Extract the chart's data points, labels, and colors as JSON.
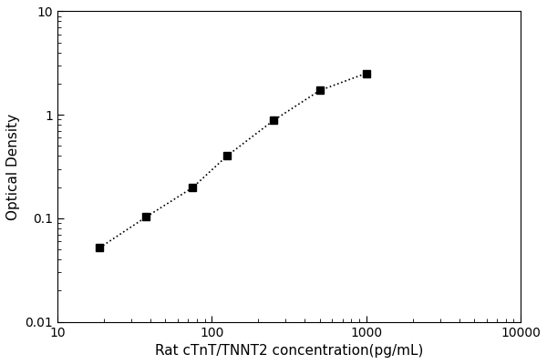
{
  "x": [
    18.75,
    37.5,
    75,
    125,
    250,
    500,
    1000
  ],
  "y": [
    0.052,
    0.103,
    0.198,
    0.4,
    0.88,
    1.72,
    2.52
  ],
  "marker": "s",
  "marker_color": "black",
  "marker_size": 6,
  "line_style": "dotted",
  "line_color": "black",
  "line_width": 1.2,
  "xlabel": "Rat cTnT/TNNT2 concentration(pg/mL)",
  "ylabel": "Optical Density",
  "xlim": [
    10,
    10000
  ],
  "ylim": [
    0.01,
    10
  ],
  "xticks": [
    10,
    100,
    1000,
    10000
  ],
  "yticks": [
    0.01,
    0.1,
    1,
    10
  ],
  "ytick_labels": [
    "0.01",
    "0.1",
    "1",
    "10"
  ],
  "xtick_labels": [
    "10",
    "100",
    "1000",
    "10000"
  ],
  "background_color": "#ffffff",
  "xlabel_fontsize": 11,
  "ylabel_fontsize": 11,
  "tick_fontsize": 10
}
